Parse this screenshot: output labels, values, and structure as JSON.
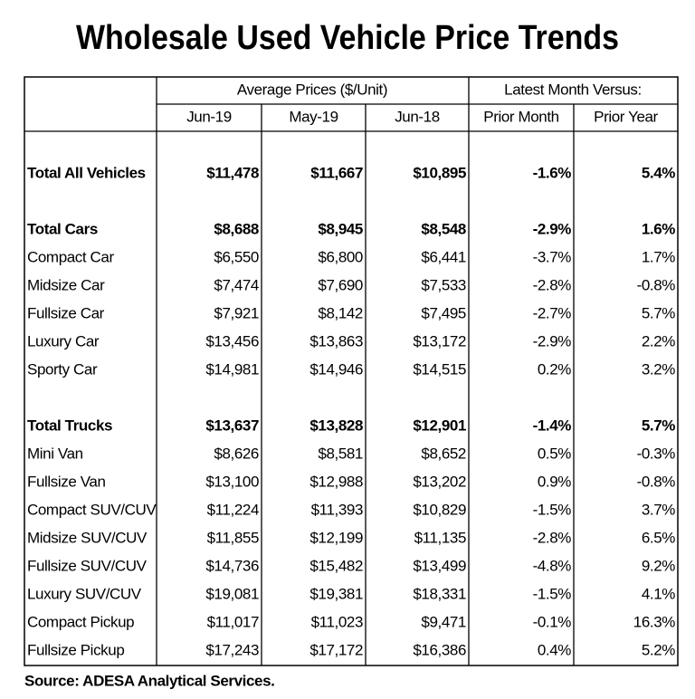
{
  "title": "Wholesale Used Vehicle Price Trends",
  "header": {
    "groups": [
      "Average Prices ($/Unit)",
      "Latest Month Versus:"
    ],
    "columns": [
      "Jun-19",
      "May-19",
      "Jun-18",
      "Prior Month",
      "Prior Year"
    ]
  },
  "sections": [
    [
      [
        "Total All Vehicles",
        "$11,478",
        "$11,667",
        "$10,895",
        "-1.6%",
        "5.4%"
      ]
    ],
    [
      [
        "Total Cars",
        "$8,688",
        "$8,945",
        "$8,548",
        "-2.9%",
        "1.6%"
      ],
      [
        "Compact Car",
        "$6,550",
        "$6,800",
        "$6,441",
        "-3.7%",
        "1.7%"
      ],
      [
        "Midsize Car",
        "$7,474",
        "$7,690",
        "$7,533",
        "-2.8%",
        "-0.8%"
      ],
      [
        "Fullsize Car",
        "$7,921",
        "$8,142",
        "$7,495",
        "-2.7%",
        "5.7%"
      ],
      [
        "Luxury Car",
        "$13,456",
        "$13,863",
        "$13,172",
        "-2.9%",
        "2.2%"
      ],
      [
        "Sporty Car",
        "$14,981",
        "$14,946",
        "$14,515",
        "0.2%",
        "3.2%"
      ]
    ],
    [
      [
        "Total Trucks",
        "$13,637",
        "$13,828",
        "$12,901",
        "-1.4%",
        "5.7%"
      ],
      [
        "Mini Van",
        "$8,626",
        "$8,581",
        "$8,652",
        "0.5%",
        "-0.3%"
      ],
      [
        "Fullsize Van",
        "$13,100",
        "$12,988",
        "$13,202",
        "0.9%",
        "-0.8%"
      ],
      [
        "Compact SUV/CUV",
        "$11,224",
        "$11,393",
        "$10,829",
        "-1.5%",
        "3.7%"
      ],
      [
        "Midsize SUV/CUV",
        "$11,855",
        "$12,199",
        "$11,135",
        "-2.8%",
        "6.5%"
      ],
      [
        "Fullsize SUV/CUV",
        "$14,736",
        "$15,482",
        "$13,499",
        "-4.8%",
        "9.2%"
      ],
      [
        "Luxury SUV/CUV",
        "$19,081",
        "$19,381",
        "$18,331",
        "-1.5%",
        "4.1%"
      ],
      [
        "Compact Pickup",
        "$11,017",
        "$11,023",
        "$9,471",
        "-0.1%",
        "16.3%"
      ],
      [
        "Fullsize Pickup",
        "$17,243",
        "$17,172",
        "$16,386",
        "0.4%",
        "5.2%"
      ]
    ]
  ],
  "source": "Source: ADESA Analytical Services."
}
